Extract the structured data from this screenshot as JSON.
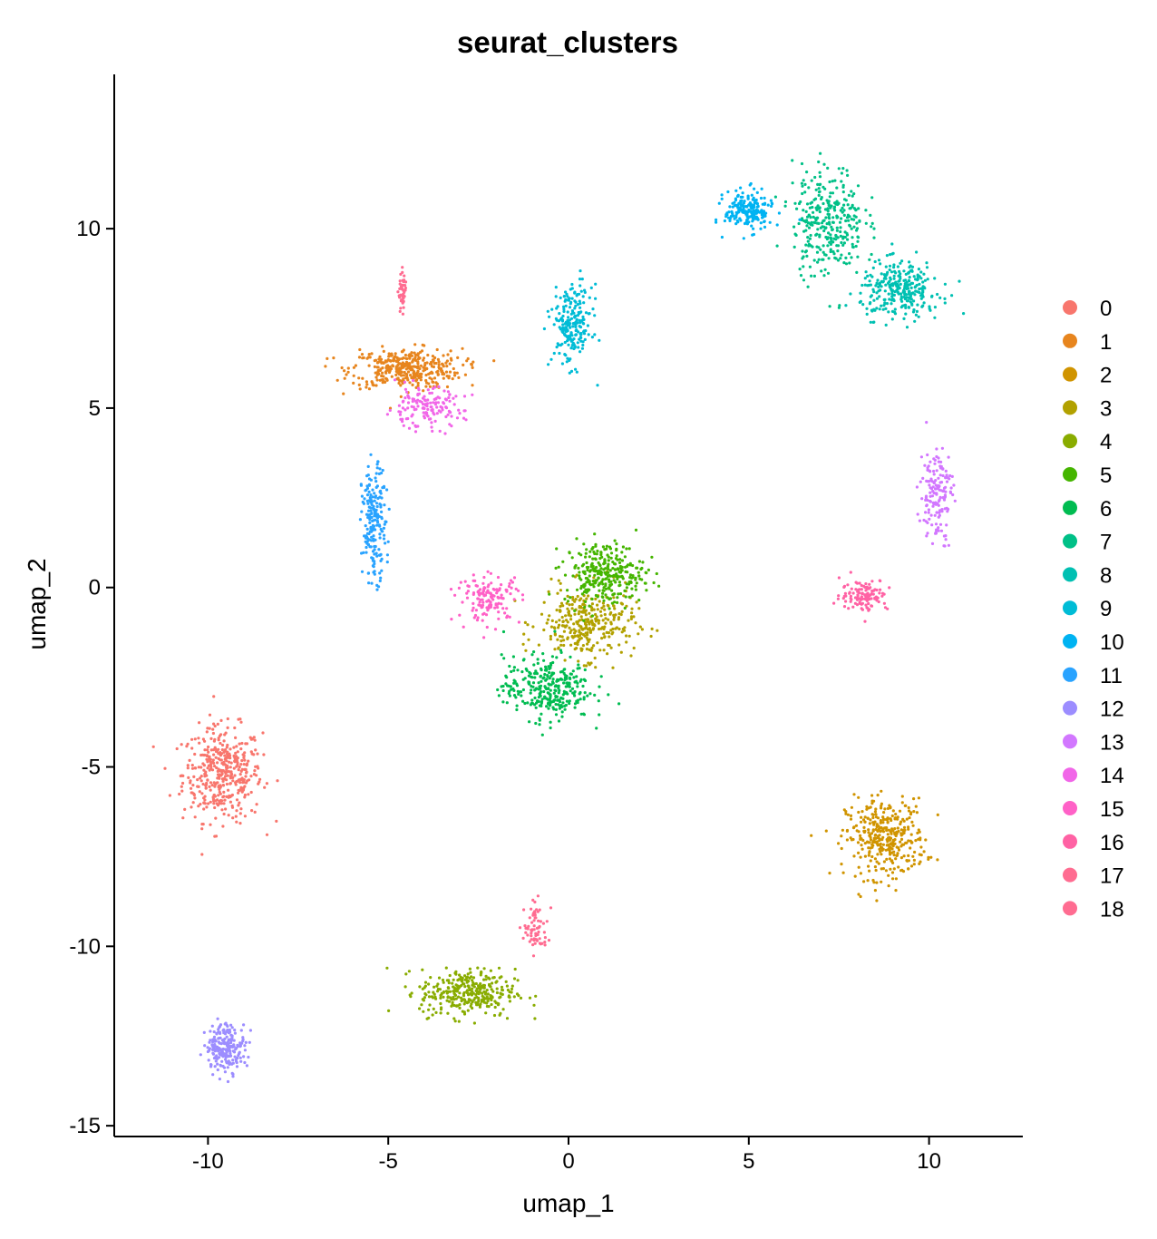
{
  "chart_data": {
    "type": "scatter",
    "title": "seurat_clusters",
    "xlabel": "umap_1",
    "ylabel": "umap_2",
    "xlim": [
      -12.6,
      12.6
    ],
    "ylim": [
      -15.3,
      14.3
    ],
    "xticks": [
      -10,
      -5,
      0,
      5,
      10
    ],
    "yticks": [
      10,
      5,
      0,
      -5,
      -10,
      -15
    ],
    "xtick_labels": [
      "-10",
      "-5",
      "0",
      "5",
      "10"
    ],
    "ytick_labels": [
      "10",
      "5",
      "0",
      "-5",
      "-10",
      "-15"
    ],
    "grid": false,
    "legend_position": "right",
    "series": [
      {
        "name": "0",
        "color": "#F8766D",
        "center": [
          -9.6,
          -5.2
        ],
        "spread": [
          1.0,
          1.2
        ],
        "n": 420
      },
      {
        "name": "1",
        "color": "#E7851E",
        "center": [
          -4.5,
          6.1
        ],
        "spread": [
          1.4,
          0.5
        ],
        "n": 380
      },
      {
        "name": "2",
        "color": "#D09400",
        "center": [
          8.8,
          -7.0
        ],
        "spread": [
          1.0,
          1.0
        ],
        "n": 360
      },
      {
        "name": "3",
        "color": "#B2A100",
        "center": [
          0.5,
          -1.0
        ],
        "spread": [
          1.2,
          0.9
        ],
        "n": 320
      },
      {
        "name": "4",
        "color": "#89AC00",
        "center": [
          -2.8,
          -11.3
        ],
        "spread": [
          1.2,
          0.6
        ],
        "n": 330
      },
      {
        "name": "5",
        "color": "#45B500",
        "center": [
          1.0,
          0.4
        ],
        "spread": [
          1.0,
          0.8
        ],
        "n": 300
      },
      {
        "name": "6",
        "color": "#00BC51",
        "center": [
          -0.6,
          -2.8
        ],
        "spread": [
          1.1,
          0.8
        ],
        "n": 320
      },
      {
        "name": "7",
        "color": "#00C087",
        "center": [
          7.2,
          10.2
        ],
        "spread": [
          0.9,
          1.4
        ],
        "n": 320
      },
      {
        "name": "8",
        "color": "#00C0B2",
        "center": [
          9.2,
          8.3
        ],
        "spread": [
          1.0,
          0.7
        ],
        "n": 300
      },
      {
        "name": "9",
        "color": "#00BCD6",
        "center": [
          0.1,
          7.3
        ],
        "spread": [
          0.5,
          1.0
        ],
        "n": 220
      },
      {
        "name": "10",
        "color": "#00B3F2",
        "center": [
          5.0,
          10.5
        ],
        "spread": [
          0.6,
          0.5
        ],
        "n": 200
      },
      {
        "name": "11",
        "color": "#29A3FF",
        "center": [
          -5.4,
          1.8
        ],
        "spread": [
          0.3,
          1.4
        ],
        "n": 200
      },
      {
        "name": "12",
        "color": "#9C8DFF",
        "center": [
          -9.5,
          -12.8
        ],
        "spread": [
          0.5,
          0.6
        ],
        "n": 220
      },
      {
        "name": "13",
        "color": "#D277FF",
        "center": [
          10.2,
          2.6
        ],
        "spread": [
          0.4,
          1.2
        ],
        "n": 160
      },
      {
        "name": "14",
        "color": "#F166E8",
        "center": [
          -4.0,
          5.0
        ],
        "spread": [
          1.0,
          0.5
        ],
        "n": 150
      },
      {
        "name": "15",
        "color": "#FF61C7",
        "center": [
          -2.2,
          -0.3
        ],
        "spread": [
          0.8,
          0.6
        ],
        "n": 140
      },
      {
        "name": "16",
        "color": "#FF62A4",
        "center": [
          8.2,
          -0.2
        ],
        "spread": [
          0.6,
          0.4
        ],
        "n": 120
      },
      {
        "name": "17",
        "color": "#FF6C91",
        "center": [
          -0.9,
          -9.5
        ],
        "spread": [
          0.3,
          0.6
        ],
        "n": 70
      },
      {
        "name": "18",
        "color": "#FF6C91",
        "center": [
          -4.6,
          8.2
        ],
        "spread": [
          0.1,
          0.5
        ],
        "n": 50
      }
    ]
  }
}
